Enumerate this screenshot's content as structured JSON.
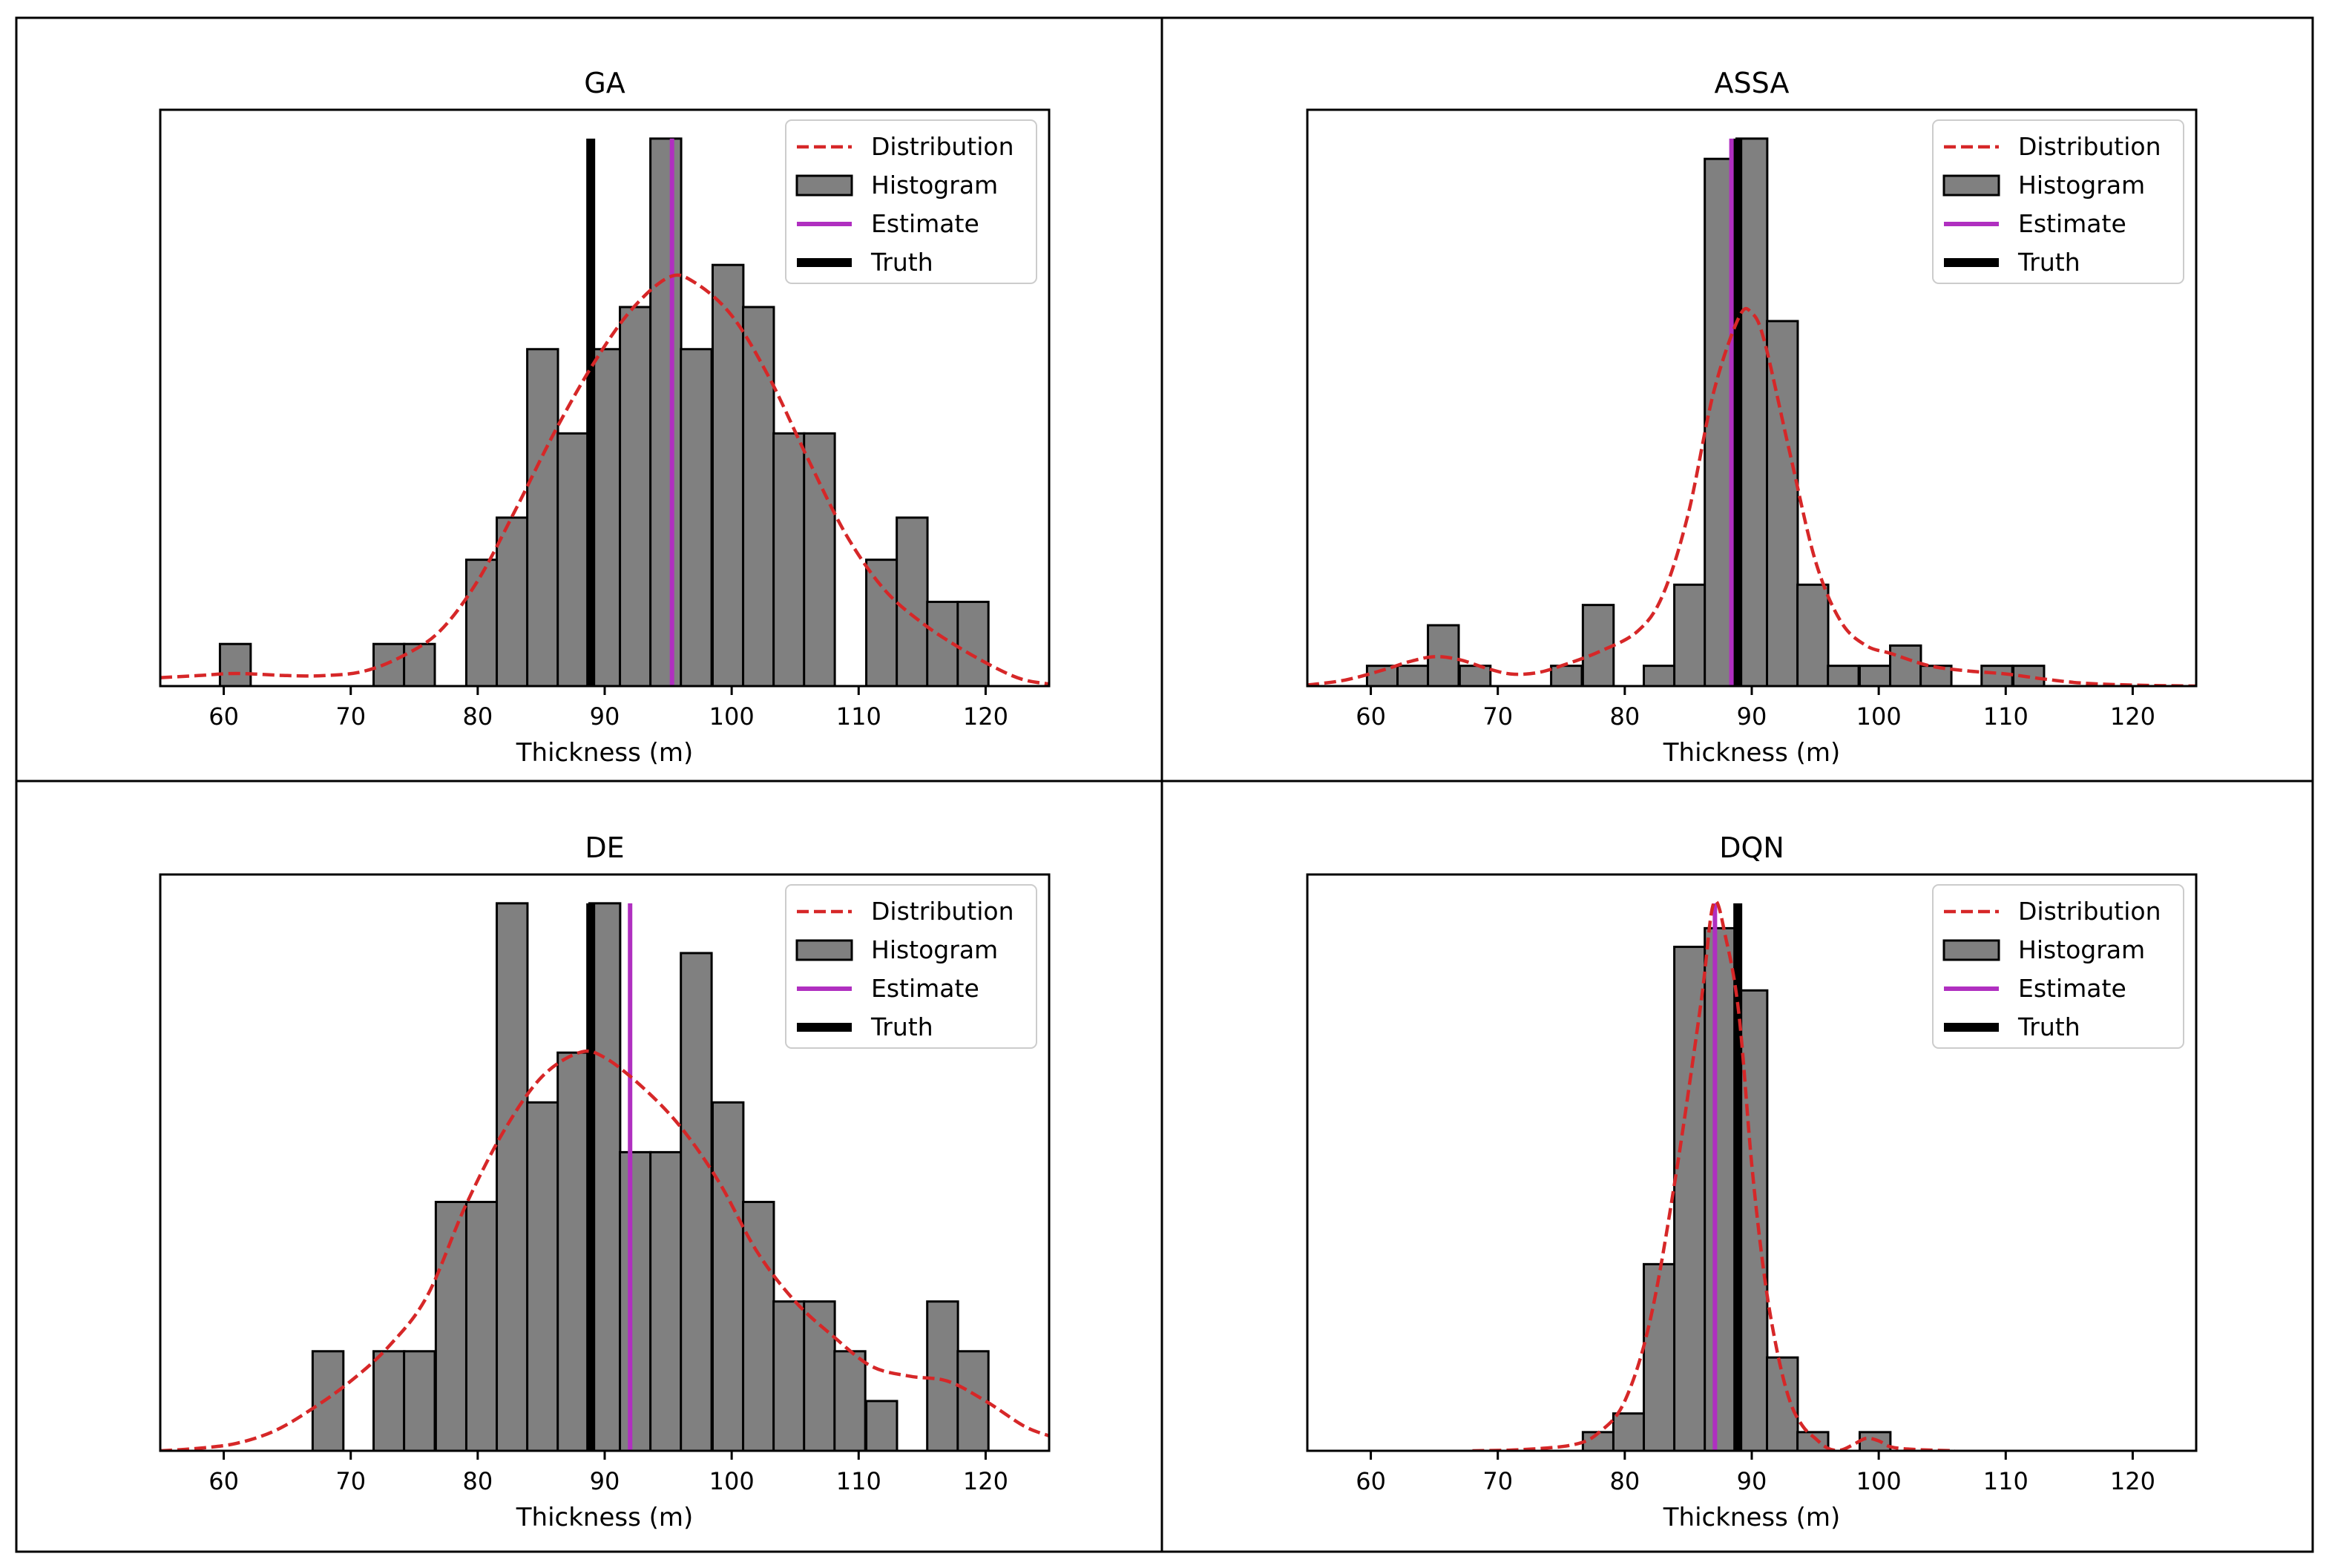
{
  "chart_data": [
    {
      "type": "bar",
      "title": "GA",
      "xlabel": "Thickness (m)",
      "ylabel": "",
      "xlim": [
        55,
        125
      ],
      "ylim": [
        0,
        13
      ],
      "xticks": [
        60,
        70,
        80,
        90,
        100,
        110,
        120
      ],
      "bin_width": 2.42,
      "histogram": [
        {
          "x0": 59.7,
          "count": 1
        },
        {
          "x0": 71.8,
          "count": 1
        },
        {
          "x0": 74.2,
          "count": 1
        },
        {
          "x0": 79.1,
          "count": 3
        },
        {
          "x0": 81.5,
          "count": 4
        },
        {
          "x0": 83.9,
          "count": 8
        },
        {
          "x0": 86.3,
          "count": 6
        },
        {
          "x0": 88.8,
          "count": 8
        },
        {
          "x0": 91.2,
          "count": 9
        },
        {
          "x0": 93.6,
          "count": 13
        },
        {
          "x0": 96.0,
          "count": 8
        },
        {
          "x0": 98.5,
          "count": 10
        },
        {
          "x0": 100.9,
          "count": 9
        },
        {
          "x0": 103.3,
          "count": 6
        },
        {
          "x0": 105.7,
          "count": 6
        },
        {
          "x0": 110.6,
          "count": 3
        },
        {
          "x0": 113.0,
          "count": 4
        },
        {
          "x0": 115.4,
          "count": 2
        },
        {
          "x0": 117.8,
          "count": 2
        }
      ],
      "distribution": [
        [
          55,
          0.2
        ],
        [
          58,
          0.25
        ],
        [
          61,
          0.3
        ],
        [
          65,
          0.25
        ],
        [
          68,
          0.25
        ],
        [
          71,
          0.35
        ],
        [
          74,
          0.7
        ],
        [
          77,
          1.3
        ],
        [
          80,
          2.5
        ],
        [
          83,
          4.2
        ],
        [
          86,
          6.0
        ],
        [
          89,
          7.6
        ],
        [
          92,
          8.9
        ],
        [
          95,
          9.7
        ],
        [
          97,
          9.6
        ],
        [
          100,
          8.8
        ],
        [
          103,
          7.3
        ],
        [
          106,
          5.4
        ],
        [
          109,
          3.6
        ],
        [
          112,
          2.3
        ],
        [
          115,
          1.5
        ],
        [
          118,
          0.9
        ],
        [
          121,
          0.4
        ],
        [
          123,
          0.15
        ],
        [
          125,
          0.05
        ]
      ],
      "estimate": 95.3,
      "truth": 88.9,
      "legend": [
        "Distribution",
        "Histogram",
        "Estimate",
        "Truth"
      ],
      "legend_position": "top-right"
    },
    {
      "type": "bar",
      "title": "ASSA",
      "xlabel": "Thickness (m)",
      "ylabel": "",
      "xlim": [
        55,
        125
      ],
      "ylim": [
        0,
        27
      ],
      "xticks": [
        60,
        70,
        80,
        90,
        100,
        110,
        120
      ],
      "bin_width": 2.42,
      "histogram": [
        {
          "x0": 59.7,
          "count": 1
        },
        {
          "x0": 62.1,
          "count": 1
        },
        {
          "x0": 64.5,
          "count": 3
        },
        {
          "x0": 67.0,
          "count": 1
        },
        {
          "x0": 74.2,
          "count": 1
        },
        {
          "x0": 76.7,
          "count": 4
        },
        {
          "x0": 81.5,
          "count": 1
        },
        {
          "x0": 83.9,
          "count": 5
        },
        {
          "x0": 86.3,
          "count": 26
        },
        {
          "x0": 88.8,
          "count": 27
        },
        {
          "x0": 91.2,
          "count": 18
        },
        {
          "x0": 93.6,
          "count": 5
        },
        {
          "x0": 96.0,
          "count": 1
        },
        {
          "x0": 98.5,
          "count": 1
        },
        {
          "x0": 100.9,
          "count": 2
        },
        {
          "x0": 103.3,
          "count": 1
        },
        {
          "x0": 108.1,
          "count": 1
        },
        {
          "x0": 110.6,
          "count": 1
        }
      ],
      "distribution": [
        [
          55,
          0.05
        ],
        [
          58,
          0.3
        ],
        [
          61,
          0.8
        ],
        [
          63,
          1.2
        ],
        [
          65,
          1.45
        ],
        [
          67,
          1.3
        ],
        [
          69,
          0.9
        ],
        [
          71,
          0.6
        ],
        [
          73,
          0.65
        ],
        [
          75,
          1.0
        ],
        [
          78,
          1.7
        ],
        [
          81,
          2.7
        ],
        [
          83,
          4.5
        ],
        [
          85,
          8.5
        ],
        [
          87,
          14.5
        ],
        [
          89,
          18.2
        ],
        [
          90,
          18.4
        ],
        [
          91,
          17.0
        ],
        [
          93,
          11.5
        ],
        [
          95,
          6.2
        ],
        [
          97,
          3.2
        ],
        [
          99,
          2.0
        ],
        [
          101,
          1.6
        ],
        [
          104,
          1.0
        ],
        [
          107,
          0.75
        ],
        [
          110,
          0.6
        ],
        [
          113,
          0.35
        ],
        [
          116,
          0.15
        ],
        [
          120,
          0.05
        ],
        [
          125,
          0.0
        ]
      ],
      "estimate": 88.4,
      "truth": 88.9,
      "legend": [
        "Distribution",
        "Histogram",
        "Estimate",
        "Truth"
      ],
      "legend_position": "top-right"
    },
    {
      "type": "bar",
      "title": "DE",
      "xlabel": "Thickness (m)",
      "ylabel": "",
      "xlim": [
        55,
        125
      ],
      "ylim": [
        0,
        11
      ],
      "xticks": [
        60,
        70,
        80,
        90,
        100,
        110,
        120
      ],
      "bin_width": 2.42,
      "histogram": [
        {
          "x0": 67.0,
          "count": 2
        },
        {
          "x0": 71.8,
          "count": 2
        },
        {
          "x0": 74.2,
          "count": 2
        },
        {
          "x0": 76.7,
          "count": 5
        },
        {
          "x0": 79.1,
          "count": 5
        },
        {
          "x0": 81.5,
          "count": 11
        },
        {
          "x0": 83.9,
          "count": 7
        },
        {
          "x0": 86.3,
          "count": 8
        },
        {
          "x0": 88.8,
          "count": 11
        },
        {
          "x0": 91.2,
          "count": 6
        },
        {
          "x0": 93.6,
          "count": 6
        },
        {
          "x0": 96.0,
          "count": 10
        },
        {
          "x0": 98.5,
          "count": 7
        },
        {
          "x0": 100.9,
          "count": 5
        },
        {
          "x0": 103.3,
          "count": 3
        },
        {
          "x0": 105.7,
          "count": 3
        },
        {
          "x0": 108.1,
          "count": 2
        },
        {
          "x0": 110.6,
          "count": 1
        },
        {
          "x0": 115.4,
          "count": 3
        },
        {
          "x0": 117.8,
          "count": 2
        }
      ],
      "distribution": [
        [
          55,
          0.0
        ],
        [
          58,
          0.05
        ],
        [
          61,
          0.15
        ],
        [
          64,
          0.4
        ],
        [
          67,
          0.85
        ],
        [
          70,
          1.4
        ],
        [
          73,
          2.1
        ],
        [
          76,
          3.1
        ],
        [
          79,
          4.9
        ],
        [
          82,
          6.4
        ],
        [
          85,
          7.5
        ],
        [
          88,
          8.0
        ],
        [
          90,
          7.9
        ],
        [
          93,
          7.3
        ],
        [
          96,
          6.5
        ],
        [
          99,
          5.4
        ],
        [
          102,
          4.0
        ],
        [
          105,
          3.0
        ],
        [
          108,
          2.3
        ],
        [
          111,
          1.7
        ],
        [
          114,
          1.5
        ],
        [
          117,
          1.4
        ],
        [
          120,
          1.0
        ],
        [
          123,
          0.5
        ],
        [
          125,
          0.3
        ]
      ],
      "estimate": 92.0,
      "truth": 88.9,
      "legend": [
        "Distribution",
        "Histogram",
        "Estimate",
        "Truth"
      ],
      "legend_position": "top-right"
    },
    {
      "type": "bar",
      "title": "DQN",
      "xlabel": "Thickness (m)",
      "ylabel": "",
      "xlim": [
        55,
        125
      ],
      "ylim": [
        0,
        44
      ],
      "xticks": [
        60,
        70,
        80,
        90,
        100,
        110,
        120
      ],
      "bin_width": 2.42,
      "histogram": [
        {
          "x0": 76.7,
          "count": 1.5
        },
        {
          "x0": 79.1,
          "count": 3
        },
        {
          "x0": 81.5,
          "count": 15
        },
        {
          "x0": 83.9,
          "count": 40.5
        },
        {
          "x0": 86.3,
          "count": 42
        },
        {
          "x0": 88.8,
          "count": 37
        },
        {
          "x0": 91.2,
          "count": 7.5
        },
        {
          "x0": 93.6,
          "count": 1.5
        },
        {
          "x0": 98.5,
          "count": 1.5
        }
      ],
      "distribution": [
        [
          68,
          0.0
        ],
        [
          72,
          0.1
        ],
        [
          76,
          0.5
        ],
        [
          78,
          1.5
        ],
        [
          80,
          4.0
        ],
        [
          82,
          10.5
        ],
        [
          84,
          22.0
        ],
        [
          86,
          36.0
        ],
        [
          87,
          44.0
        ],
        [
          88,
          41.0
        ],
        [
          89,
          35.0
        ],
        [
          90,
          23.0
        ],
        [
          91,
          14.0
        ],
        [
          92,
          8.0
        ],
        [
          93,
          4.0
        ],
        [
          94,
          2.0
        ],
        [
          95,
          1.0
        ],
        [
          96,
          0.2
        ],
        [
          97,
          0.05
        ],
        [
          98,
          0.5
        ],
        [
          99,
          1.0
        ],
        [
          100,
          0.8
        ],
        [
          101,
          0.3
        ],
        [
          103,
          0.1
        ],
        [
          106,
          0.0
        ]
      ],
      "estimate": 87.1,
      "truth": 88.9,
      "legend": [
        "Distribution",
        "Histogram",
        "Estimate",
        "Truth"
      ],
      "legend_position": "top-right"
    }
  ],
  "colors": {
    "distribution": "#d62728",
    "histogram_fill": "#808080",
    "histogram_edge": "#000000",
    "estimate": "#b02fc0",
    "truth": "#000000"
  }
}
